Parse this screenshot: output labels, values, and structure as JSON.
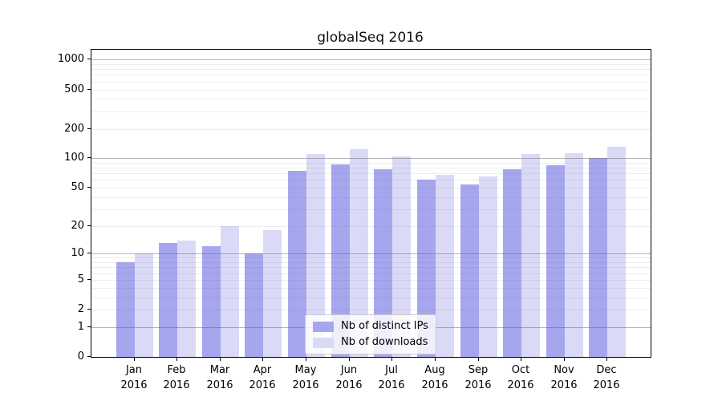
{
  "chart_data": {
    "type": "bar",
    "title": "globalSeq 2016",
    "categories": [
      {
        "label": "Jan",
        "sublabel": "2016"
      },
      {
        "label": "Feb",
        "sublabel": "2016"
      },
      {
        "label": "Mar",
        "sublabel": "2016"
      },
      {
        "label": "Apr",
        "sublabel": "2016"
      },
      {
        "label": "May",
        "sublabel": "2016"
      },
      {
        "label": "Jun",
        "sublabel": "2016"
      },
      {
        "label": "Jul",
        "sublabel": "2016"
      },
      {
        "label": "Aug",
        "sublabel": "2016"
      },
      {
        "label": "Sep",
        "sublabel": "2016"
      },
      {
        "label": "Oct",
        "sublabel": "2016"
      },
      {
        "label": "Nov",
        "sublabel": "2016"
      },
      {
        "label": "Dec",
        "sublabel": "2016"
      }
    ],
    "series": [
      {
        "name": "Nb of distinct IPs",
        "color": "#a6a6ef",
        "values": [
          8,
          13,
          12,
          10,
          75,
          87,
          77,
          61,
          54,
          78,
          85,
          100
        ]
      },
      {
        "name": "Nb of downloads",
        "color": "#dadaf7",
        "values": [
          10,
          14,
          20,
          18,
          110,
          125,
          105,
          68,
          65,
          110,
          112,
          130
        ]
      }
    ],
    "yticks": [
      1000,
      500,
      200,
      100,
      50,
      20,
      10,
      5,
      2,
      1,
      0
    ],
    "xlabel": "",
    "ylabel": "",
    "scale": "log1p",
    "ylim": [
      0,
      1260
    ],
    "grid": "on",
    "legend_position": "inside-bottom-center"
  },
  "colors": {
    "major_grid": "#b4b4b4",
    "minor_grid": "#ececec",
    "spine": "#000000"
  }
}
